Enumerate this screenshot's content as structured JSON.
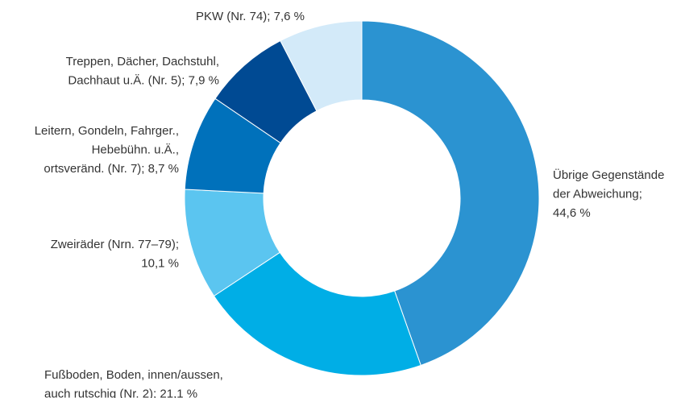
{
  "chart_data": {
    "type": "donut",
    "categories": [
      [
        "Übrige Gegenstände",
        "der Abweichung;",
        "44,6 %"
      ],
      [
        "Fußboden, Boden, innen/aussen,",
        "auch rutschig (Nr. 2); 21,1 %"
      ],
      [
        "Zweiräder (Nrn. 77–79);",
        "10,1 %"
      ],
      [
        "Leitern, Gondeln, Fahrger.,",
        "Hebebühn. u.Ä.,",
        "ortsveränd. (Nr. 7); 8,7 %"
      ],
      [
        "Treppen, Dächer, Dachstuhl,",
        "Dachhaut u.Ä. (Nr. 5); 7,9 %"
      ],
      [
        "PKW  (Nr. 74); 7,6 %"
      ]
    ],
    "values": [
      44.6,
      21.1,
      10.1,
      8.7,
      7.9,
      7.6
    ],
    "colors": [
      "#2b93d1",
      "#00aee6",
      "#5bc5f0",
      "#0071bb",
      "#004a93",
      "#d3eaf9"
    ]
  }
}
